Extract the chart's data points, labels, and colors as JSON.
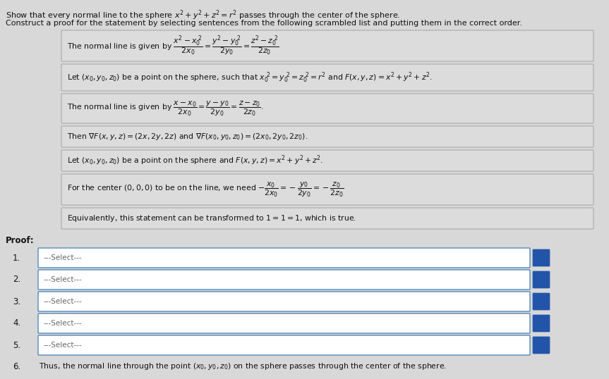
{
  "title_line1": "Show that every normal line to the sphere $x^2 + y^2 + z^2 = r^2$ passes through the center of the sphere.",
  "title_line2": "Construct a proof for the statement by selecting sentences from the following scrambled list and putting them in the correct order.",
  "scrambled_items": [
    "The normal line is given by $\\dfrac{x^2-x_0^{\\ 2}}{2x_0} = \\dfrac{y^2-y_0^{\\ 2}}{2y_0} = \\dfrac{z^2-z_0^{\\ 2}}{2z_0}$",
    "Let $(x_0, y_0, z_0)$ be a point on the sphere, such that $x_0^{\\ 2} = y_0^{\\ 2} = z_0^{\\ 2} = r^2$ and $F(x, y, z) = x^2 + y^2 + z^2$.",
    "The normal line is given by $\\dfrac{x-x_0}{2x_0} = \\dfrac{y-y_0}{2y_0} = \\dfrac{z-z_0}{2z_0}$.",
    "Then $\\nabla F(x, y, z) = (2x, 2y, 2z)$ and $\\nabla F(x_0, y_0, z_0) = (2x_0, 2y_0, 2z_0)$.",
    "Let $(x_0, y_0, z_0)$ be a point on the sphere and $F(x, y, z) = x^2 + y^2 + z^2$.",
    "For the center $(0, 0, 0)$ to be on the line, we need $-\\dfrac{x_0}{2x_0} = -\\dfrac{y_0}{2y_0} = -\\dfrac{z_0}{2z_0}$",
    "Equivalently, this statement can be transformed to $1 = 1 = 1$, which is true."
  ],
  "proof_label": "Proof:",
  "proof_items": [
    "---Select---",
    "---Select---",
    "---Select---",
    "---Select---",
    "---Select---"
  ],
  "final_line": "Thus, the normal line through the point $(x_0, y_0, z_0)$ on the sphere passes through the center of the sphere.",
  "bg_color": "#d8d8d8",
  "box_fill": "#dcdcdc",
  "box_edge": "#aaaaaa",
  "select_box_fill": "#ffffff",
  "select_box_edge": "#5588bb",
  "button_color": "#2255aa",
  "text_color": "#111111",
  "title_fontsize": 8.0,
  "body_fontsize": 7.8,
  "proof_fontsize": 8.5
}
